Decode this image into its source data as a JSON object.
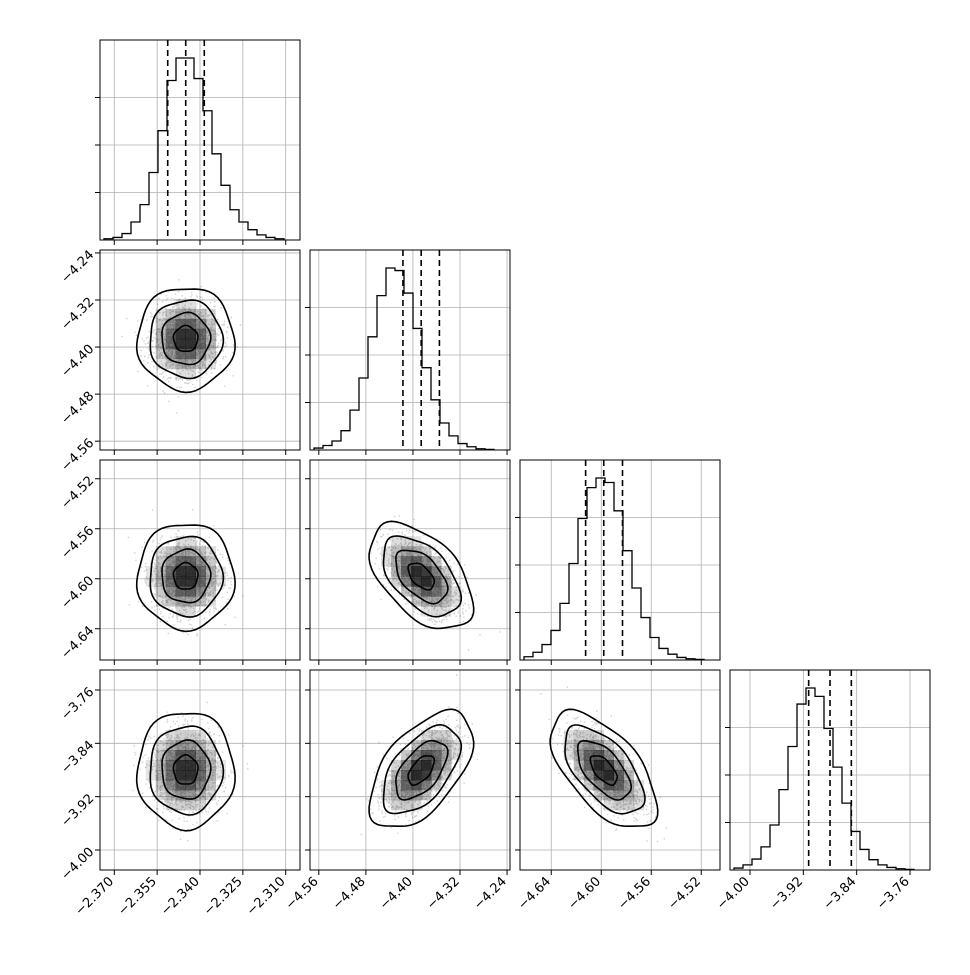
{
  "chart_data": {
    "type": "corner",
    "grid": true,
    "parameters": [
      {
        "range": [
          -2.375,
          -2.305
        ],
        "ticks": [
          -2.37,
          -2.355,
          -2.34,
          -2.325,
          -2.31
        ],
        "tick_labels": [
          "−2.370",
          "−2.355",
          "−2.340",
          "−2.325",
          "−2.310"
        ],
        "quantiles": [
          -2.3513,
          -2.345,
          -2.3385
        ],
        "mean": -2.345,
        "sd": 0.006
      },
      {
        "range": [
          -4.575,
          -4.235
        ],
        "ticks": [
          -4.56,
          -4.48,
          -4.4,
          -4.32,
          -4.24
        ],
        "tick_labels": [
          "−4.56",
          "−4.48",
          "−4.40",
          "−4.32",
          "−4.24"
        ],
        "quantiles": [
          -4.417,
          -4.386,
          -4.355
        ],
        "mean": -4.386,
        "sd": 0.031
      },
      {
        "range": [
          -4.665,
          -4.505
        ],
        "ticks": [
          -4.64,
          -4.6,
          -4.56,
          -4.52
        ],
        "tick_labels": [
          "−4.64",
          "−4.60",
          "−4.56",
          "−4.52"
        ],
        "quantiles": [
          -4.6125,
          -4.598,
          -4.583
        ],
        "mean": -4.598,
        "sd": 0.015
      },
      {
        "range": [
          -4.03,
          -3.73
        ],
        "ticks": [
          -4.0,
          -3.92,
          -3.84,
          -3.76
        ],
        "tick_labels": [
          "−4.00",
          "−3.92",
          "−3.84",
          "−3.76"
        ],
        "quantiles": [
          -3.912,
          -3.88,
          -3.848
        ],
        "mean": -3.88,
        "sd": 0.031
      }
    ],
    "histograms": [
      [
        2,
        4,
        10,
        28,
        55,
        105,
        170,
        248,
        283,
        283,
        251,
        201,
        134,
        85,
        47,
        28,
        16,
        8,
        4,
        2
      ],
      [
        3,
        7,
        14,
        30,
        62,
        112,
        176,
        240,
        283,
        279,
        244,
        189,
        128,
        78,
        42,
        22,
        10,
        5,
        2,
        1
      ],
      [
        5,
        12,
        24,
        46,
        88,
        150,
        220,
        268,
        283,
        276,
        232,
        170,
        112,
        66,
        35,
        18,
        9,
        4,
        2,
        1
      ],
      [
        3,
        8,
        17,
        36,
        70,
        125,
        192,
        258,
        283,
        270,
        220,
        160,
        104,
        60,
        32,
        16,
        8,
        4,
        2,
        1
      ]
    ],
    "correlations": [
      [
        1,
        0.0,
        0.0,
        0.0
      ],
      [
        0.0,
        1,
        -0.5,
        0.55
      ],
      [
        0.0,
        -0.5,
        1,
        -0.6
      ],
      [
        0.0,
        0.55,
        -0.6,
        1
      ]
    ],
    "samples_drawn": "scatter + 2d histogram + contours"
  },
  "colors": {
    "axes": "#000000",
    "grid": "#b0b0b0",
    "points": "#000000",
    "density": "#000000",
    "contour": "#000000",
    "background": "#ffffff"
  }
}
